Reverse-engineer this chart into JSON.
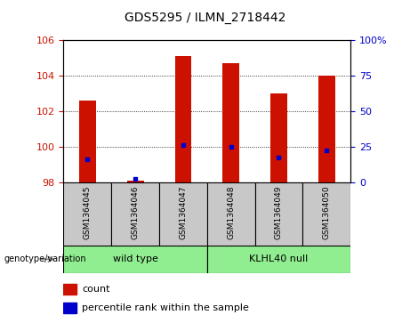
{
  "title": "GDS5295 / ILMN_2718442",
  "samples": [
    "GSM1364045",
    "GSM1364046",
    "GSM1364047",
    "GSM1364048",
    "GSM1364049",
    "GSM1364050"
  ],
  "count_values": [
    102.6,
    98.1,
    105.1,
    104.7,
    103.0,
    104.0
  ],
  "percentile_values": [
    99.3,
    98.2,
    100.1,
    100.0,
    99.4,
    99.8
  ],
  "ylim_left": [
    98,
    106
  ],
  "ylim_right": [
    0,
    100
  ],
  "yticks_left": [
    98,
    100,
    102,
    104,
    106
  ],
  "yticks_right": [
    0,
    25,
    50,
    75,
    100
  ],
  "ytick_labels_right": [
    "0",
    "25",
    "50",
    "75",
    "100%"
  ],
  "bar_color": "#CC1100",
  "dot_color": "#0000CC",
  "bar_width": 0.35,
  "bar_bottom": 98,
  "grid_lines": [
    100,
    102,
    104
  ],
  "tick_label_fontsize": 8,
  "title_fontsize": 10,
  "legend_count_label": "count",
  "legend_pct_label": "percentile rank within the sample",
  "genotype_label": "genotype/variation",
  "sample_box_color": "#c8c8c8",
  "group_box_color": "#90EE90",
  "wt_label": "wild type",
  "kl_label": "KLHL40 null"
}
